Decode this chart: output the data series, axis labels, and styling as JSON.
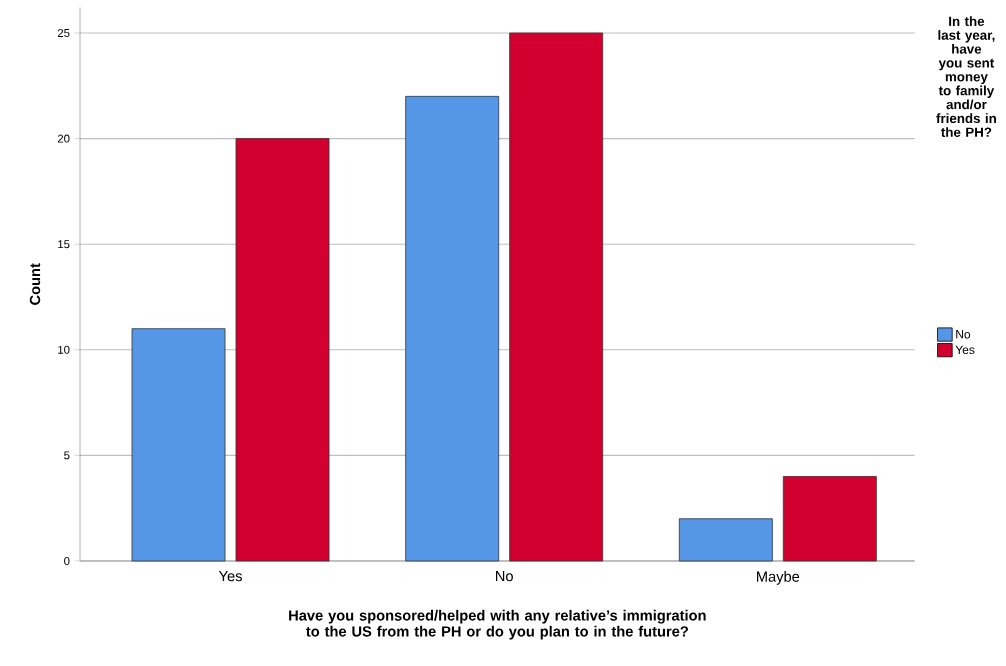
{
  "chart_data": {
    "type": "bar",
    "xlabel": "Have you sponsored/helped with any relative’s immigration to the US from the PH or do you plan to in the future?",
    "ylabel": "Count",
    "legend_title": "In the last year, have you sent money to family and/or friends in the PH?",
    "categories": [
      "Yes",
      "No",
      "Maybe"
    ],
    "series": [
      {
        "name": "No",
        "color": "#5596e6",
        "values": [
          11,
          22,
          2
        ]
      },
      {
        "name": "Yes",
        "color": "#d1002f",
        "values": [
          20,
          25,
          4
        ]
      }
    ],
    "ylim": [
      0,
      26.2
    ],
    "yticks": [
      0,
      5,
      10,
      15,
      20,
      25
    ],
    "grid": "y",
    "legend": "right"
  }
}
